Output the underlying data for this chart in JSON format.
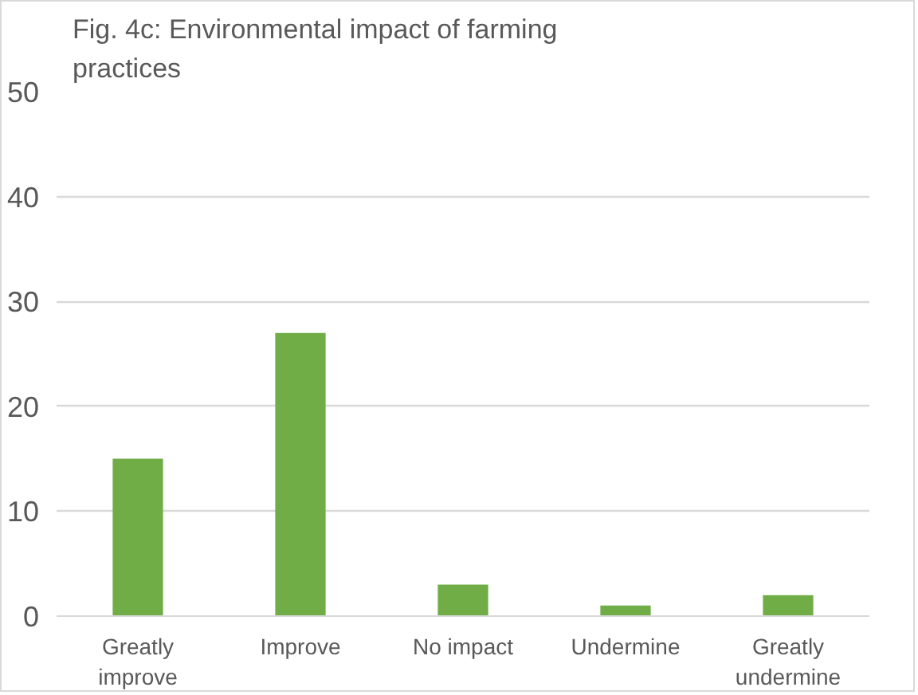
{
  "chart_data": {
    "type": "bar",
    "title": "Fig. 4c: Environmental impact of farming practices",
    "categories": [
      "Greatly improve",
      "Improve",
      "No impact",
      "Undermine",
      "Greatly undermine"
    ],
    "values": [
      15,
      27,
      3,
      1,
      2
    ],
    "color": "#70ad47",
    "ylim": [
      0,
      50
    ],
    "yticks": [
      0,
      10,
      20,
      30,
      40,
      50
    ],
    "grid": "y"
  }
}
